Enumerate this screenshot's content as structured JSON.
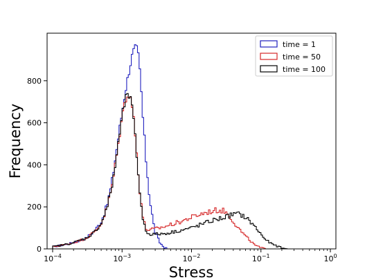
{
  "chart_data": {
    "type": "histogram",
    "title": "",
    "xlabel": "Stress",
    "ylabel": "Frequency",
    "xscale": "log",
    "xlim": [
      0.0001,
      1
    ],
    "ylim": [
      0,
      1000
    ],
    "x_ticks": [
      0.0001,
      0.001,
      0.01,
      0.1,
      1
    ],
    "x_tick_labels": [
      {
        "base": "10",
        "exp": "−4"
      },
      {
        "base": "10",
        "exp": "−3"
      },
      {
        "base": "10",
        "exp": "−2"
      },
      {
        "base": "10",
        "exp": "−1"
      },
      {
        "base": "10",
        "exp": "0"
      }
    ],
    "y_ticks": [
      0,
      200,
      400,
      600,
      800
    ],
    "y_tick_labels": [
      "0",
      "200",
      "400",
      "600",
      "800"
    ],
    "grid": false,
    "legend_position": "top-right",
    "series": [
      {
        "name": "time = 1",
        "color": "#1f1fbf",
        "points": [
          [
            0.0001,
            10
          ],
          [
            0.00015,
            20
          ],
          [
            0.0002,
            30
          ],
          [
            0.0003,
            50
          ],
          [
            0.0004,
            85
          ],
          [
            0.0005,
            130
          ],
          [
            0.0006,
            200
          ],
          [
            0.0007,
            300
          ],
          [
            0.0008,
            430
          ],
          [
            0.0009,
            550
          ],
          [
            0.001,
            650
          ],
          [
            0.0011,
            740
          ],
          [
            0.0012,
            810
          ],
          [
            0.0013,
            870
          ],
          [
            0.0014,
            920
          ],
          [
            0.0015,
            950
          ],
          [
            0.0016,
            960
          ],
          [
            0.0017,
            930
          ],
          [
            0.0018,
            850
          ],
          [
            0.0019,
            740
          ],
          [
            0.002,
            620
          ],
          [
            0.0022,
            430
          ],
          [
            0.0025,
            240
          ],
          [
            0.0028,
            130
          ],
          [
            0.003,
            80
          ],
          [
            0.0035,
            30
          ],
          [
            0.004,
            8
          ],
          [
            0.0045,
            0
          ]
        ]
      },
      {
        "name": "time = 50",
        "color": "#d62728",
        "points": [
          [
            0.0001,
            10
          ],
          [
            0.00015,
            20
          ],
          [
            0.0002,
            30
          ],
          [
            0.0003,
            50
          ],
          [
            0.0004,
            80
          ],
          [
            0.0005,
            120
          ],
          [
            0.0006,
            190
          ],
          [
            0.0007,
            280
          ],
          [
            0.0008,
            400
          ],
          [
            0.0009,
            520
          ],
          [
            0.001,
            630
          ],
          [
            0.0011,
            700
          ],
          [
            0.0012,
            740
          ],
          [
            0.0013,
            730
          ],
          [
            0.0014,
            680
          ],
          [
            0.0015,
            590
          ],
          [
            0.0016,
            480
          ],
          [
            0.0017,
            380
          ],
          [
            0.0018,
            280
          ],
          [
            0.002,
            150
          ],
          [
            0.0022,
            95
          ],
          [
            0.0025,
            90
          ],
          [
            0.003,
            95
          ],
          [
            0.004,
            105
          ],
          [
            0.005,
            115
          ],
          [
            0.007,
            130
          ],
          [
            0.01,
            150
          ],
          [
            0.015,
            170
          ],
          [
            0.02,
            180
          ],
          [
            0.025,
            185
          ],
          [
            0.03,
            180
          ],
          [
            0.035,
            160
          ],
          [
            0.04,
            130
          ],
          [
            0.05,
            90
          ],
          [
            0.06,
            60
          ],
          [
            0.07,
            40
          ],
          [
            0.08,
            20
          ],
          [
            0.1,
            5
          ],
          [
            0.12,
            0
          ]
        ]
      },
      {
        "name": "time = 100",
        "color": "#000000",
        "points": [
          [
            0.0001,
            10
          ],
          [
            0.00015,
            20
          ],
          [
            0.0002,
            30
          ],
          [
            0.0003,
            50
          ],
          [
            0.0004,
            80
          ],
          [
            0.0005,
            120
          ],
          [
            0.0006,
            190
          ],
          [
            0.0007,
            280
          ],
          [
            0.0008,
            400
          ],
          [
            0.0009,
            520
          ],
          [
            0.001,
            630
          ],
          [
            0.0011,
            700
          ],
          [
            0.0012,
            740
          ],
          [
            0.0013,
            720
          ],
          [
            0.0014,
            670
          ],
          [
            0.0015,
            580
          ],
          [
            0.0016,
            470
          ],
          [
            0.0017,
            370
          ],
          [
            0.0018,
            270
          ],
          [
            0.002,
            140
          ],
          [
            0.0022,
            85
          ],
          [
            0.0025,
            70
          ],
          [
            0.003,
            70
          ],
          [
            0.004,
            72
          ],
          [
            0.005,
            78
          ],
          [
            0.007,
            88
          ],
          [
            0.01,
            100
          ],
          [
            0.015,
            120
          ],
          [
            0.02,
            135
          ],
          [
            0.03,
            150
          ],
          [
            0.04,
            165
          ],
          [
            0.05,
            165
          ],
          [
            0.06,
            150
          ],
          [
            0.07,
            130
          ],
          [
            0.08,
            110
          ],
          [
            0.1,
            70
          ],
          [
            0.12,
            40
          ],
          [
            0.15,
            20
          ],
          [
            0.2,
            5
          ],
          [
            0.23,
            0
          ]
        ]
      }
    ]
  }
}
